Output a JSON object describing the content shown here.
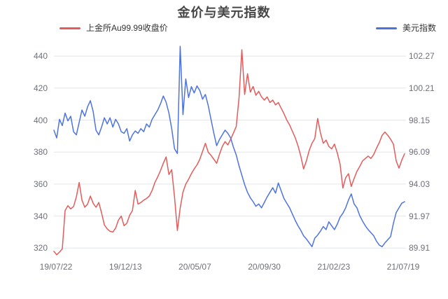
{
  "title": "金价与美元指数",
  "legend": {
    "series1": "上金所Au99.99收盘价",
    "series2": "美元指数"
  },
  "colors": {
    "background": "#ffffff",
    "title": "#464646",
    "legend_text": "#333333",
    "axis_label": "#6e7079",
    "grid_line": "#e2e5ec",
    "gold_line": "#e25c5c",
    "dxy_line": "#4e73df"
  },
  "chart_data": {
    "type": "line",
    "title": "金价与美元指数",
    "grid": "horizontal-only",
    "legend_position": "top-left-and-top-right",
    "x_axis": {
      "tick_labels": [
        "19/07/22",
        "19/12/13",
        "20/05/07",
        "20/09/30",
        "21/02/23",
        "21/07/19"
      ]
    },
    "y_axis_left": {
      "series_name": "上金所Au99.99收盘价",
      "tick_labels": [
        "320",
        "340",
        "360",
        "380",
        "400",
        "420",
        "440"
      ],
      "tick_base": 320,
      "tick_unit": 20,
      "implied_range": [
        310,
        449
      ]
    },
    "y_axis_right": {
      "series_name": "美元指数",
      "tick_labels": [
        "89.91",
        "91.97",
        "94.03",
        "96.09",
        "98.15",
        "100.21",
        "102.27"
      ],
      "tick_base": 89.91,
      "tick_unit": 2.06,
      "implied_range": [
        88.9,
        103.2
      ]
    },
    "series": [
      {
        "id": "gold-price",
        "name": "上金所Au99.99收盘价",
        "axis": "left",
        "color": "#e25c5c",
        "values": [
          318,
          315.8,
          317.5,
          319.5,
          343.5,
          346.5,
          344.5,
          346,
          352,
          361,
          350,
          345.5,
          347.5,
          352.5,
          348,
          345.5,
          348.5,
          342,
          334.5,
          332,
          330.5,
          330,
          332.5,
          337.5,
          340,
          334,
          335.5,
          340.5,
          343.5,
          356,
          347.5,
          348.5,
          350,
          351,
          352.5,
          356,
          361,
          364.5,
          368.5,
          373,
          377,
          366,
          369,
          352,
          331,
          345,
          355,
          360,
          363,
          366.5,
          369.5,
          372,
          375.5,
          380.5,
          385.5,
          380,
          378,
          375.5,
          373,
          378.5,
          383.5,
          386.5,
          384.5,
          388,
          392,
          396,
          414,
          444,
          416,
          429,
          417.5,
          421,
          415.5,
          418,
          414.5,
          412.5,
          414.5,
          411,
          412.5,
          409.5,
          411,
          407.5,
          404,
          400,
          397,
          393,
          389,
          384,
          377.5,
          369.5,
          374.5,
          381,
          385.5,
          388.5,
          401,
          392,
          385.5,
          387.5,
          383.5,
          382,
          385,
          379.5,
          372.5,
          357.5,
          364,
          366.5,
          358.5,
          363.5,
          368,
          371,
          374.5,
          376,
          377.5,
          376,
          378.5,
          382.5,
          386,
          390.5,
          392.5,
          390.5,
          388,
          385,
          374.5,
          370,
          375,
          379
        ]
      },
      {
        "id": "usd-index",
        "name": "美元指数",
        "axis": "right",
        "color": "#4e73df",
        "values": [
          97.5,
          97.0,
          98.2,
          97.8,
          98.6,
          98.1,
          98.4,
          97.4,
          97.2,
          98.0,
          98.8,
          98.4,
          99.0,
          99.4,
          98.7,
          97.5,
          97.2,
          97.7,
          98.3,
          97.9,
          98.3,
          97.7,
          98.2,
          97.9,
          97.4,
          97.3,
          97.6,
          96.8,
          97.2,
          97.45,
          97.3,
          97.6,
          97.4,
          97.9,
          97.7,
          98.2,
          98.5,
          98.8,
          99.2,
          99.7,
          99.3,
          98.6,
          97.6,
          96.3,
          96.0,
          102.9,
          98.5,
          100.8,
          99.6,
          100.3,
          99.9,
          100.35,
          100.05,
          99.5,
          99.8,
          99.1,
          98.2,
          97.3,
          96.5,
          96.9,
          97.2,
          97.5,
          97.3,
          97.0,
          96.4,
          95.9,
          95.2,
          94.6,
          94.0,
          93.5,
          93.15,
          92.9,
          92.6,
          92.75,
          92.5,
          92.85,
          93.2,
          93.5,
          93.8,
          93.45,
          94.1,
          93.6,
          93.1,
          92.8,
          92.5,
          92.1,
          91.7,
          91.35,
          91.05,
          90.7,
          90.5,
          90.25,
          90.0,
          90.55,
          90.75,
          91.0,
          91.3,
          91.1,
          91.6,
          91.35,
          91.1,
          91.45,
          91.9,
          92.15,
          92.5,
          93.0,
          93.4,
          92.75,
          92.5,
          92.0,
          91.65,
          91.35,
          91.1,
          90.9,
          90.7,
          90.35,
          90.1,
          90.0,
          90.25,
          90.45,
          90.65,
          91.5,
          92.2,
          92.5,
          92.8,
          92.9
        ]
      }
    ]
  }
}
